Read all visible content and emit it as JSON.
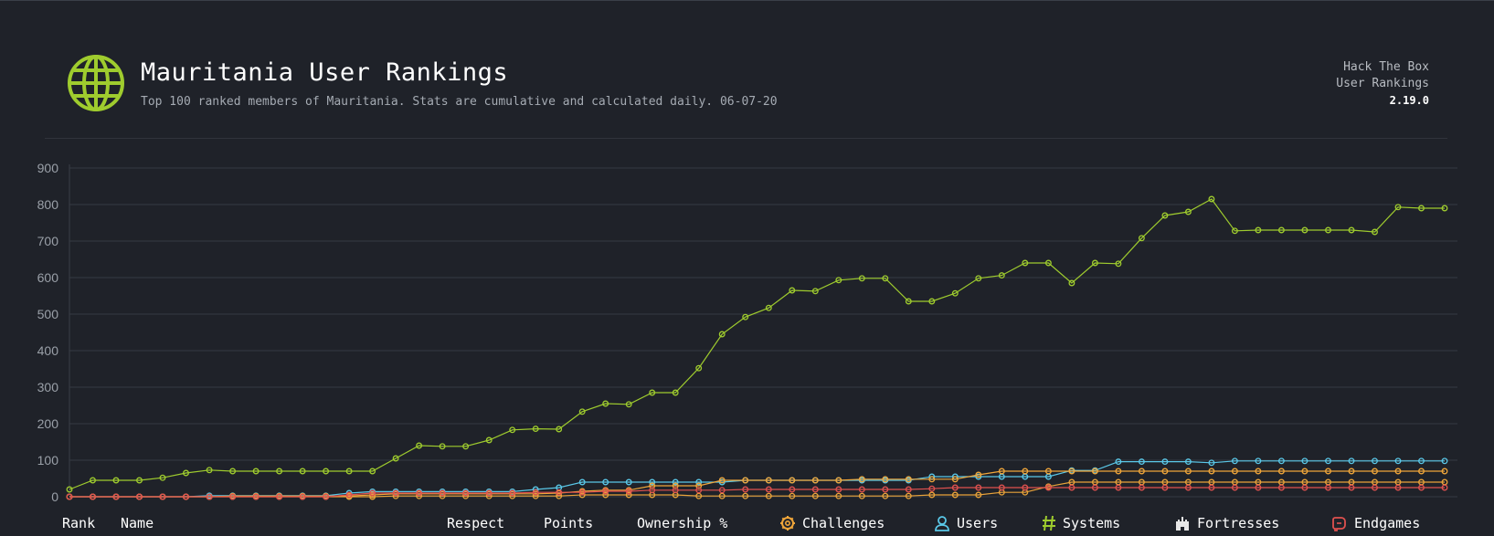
{
  "header": {
    "title": "Mauritania User Rankings",
    "subtitle": "Top 100 ranked members of Mauritania. Stats are cumulative and calculated daily. 06-07-20",
    "brand_line1": "Hack The Box",
    "brand_line2": "User Rankings",
    "version": "2.19.0",
    "globe_icon": "globe-icon",
    "accent": "#9fcc2e"
  },
  "columns": {
    "rank": "Rank",
    "name": "Name",
    "respect": "Respect",
    "points": "Points",
    "ownership": "Ownership %",
    "challenges": "Challenges",
    "users": "Users",
    "systems": "Systems",
    "fortresses": "Fortresses",
    "endgames": "Endgames"
  },
  "chart_data": {
    "type": "line",
    "ylim": [
      0,
      900
    ],
    "yticks": [
      "0",
      "100",
      "200",
      "300",
      "400",
      "500",
      "600",
      "700",
      "800",
      "900"
    ],
    "grid": true,
    "points_count": 60,
    "series": [
      {
        "color": "#9fcc2e",
        "values": [
          20,
          45,
          45,
          45,
          52,
          65,
          73,
          70,
          70,
          70,
          70,
          70,
          70,
          70,
          105,
          140,
          138,
          138,
          155,
          183,
          186,
          185,
          233,
          255,
          253,
          285,
          285,
          352,
          445,
          492,
          517,
          565,
          563,
          593,
          598,
          598,
          535,
          535,
          557,
          598,
          606,
          640,
          640,
          585,
          640,
          638,
          708,
          770,
          780,
          815,
          728,
          730,
          730,
          730,
          730,
          730,
          725,
          793,
          790,
          790
        ]
      },
      {
        "color": "#5ac8e8",
        "values": [
          0,
          0,
          0,
          0,
          0,
          0,
          3,
          3,
          3,
          3,
          3,
          3,
          10,
          14,
          14,
          14,
          14,
          14,
          14,
          14,
          20,
          25,
          40,
          40,
          40,
          40,
          40,
          40,
          40,
          45,
          45,
          45,
          45,
          45,
          45,
          45,
          45,
          55,
          55,
          55,
          55,
          55,
          55,
          72,
          72,
          96,
          96,
          96,
          96,
          93,
          98,
          98,
          98,
          98,
          98,
          98,
          98,
          98,
          98,
          98
        ]
      },
      {
        "color": "#f0a63a",
        "values": [
          0,
          0,
          0,
          0,
          0,
          0,
          0,
          2,
          2,
          2,
          2,
          2,
          2,
          5,
          8,
          8,
          8,
          8,
          8,
          8,
          8,
          10,
          15,
          18,
          18,
          30,
          30,
          30,
          45,
          45,
          45,
          45,
          45,
          45,
          48,
          48,
          48,
          48,
          48,
          60,
          70,
          70,
          70,
          70,
          70,
          70,
          70,
          70,
          70,
          70,
          70,
          70,
          70,
          70,
          70,
          70,
          70,
          70,
          70,
          70
        ]
      },
      {
        "color": "#e9a33a",
        "values": [
          0,
          0,
          0,
          0,
          0,
          0,
          0,
          0,
          0,
          0,
          0,
          0,
          0,
          0,
          2,
          2,
          2,
          2,
          2,
          2,
          2,
          2,
          5,
          5,
          5,
          5,
          5,
          2,
          2,
          2,
          2,
          2,
          2,
          2,
          2,
          2,
          2,
          5,
          5,
          5,
          12,
          12,
          28,
          40,
          40,
          40,
          40,
          40,
          40,
          40,
          40,
          40,
          40,
          40,
          40,
          40,
          40,
          40,
          40,
          40
        ]
      },
      {
        "color": "#e0514f",
        "values": [
          0,
          0,
          0,
          0,
          0,
          0,
          0,
          0,
          0,
          0,
          0,
          0,
          5,
          10,
          10,
          10,
          10,
          10,
          10,
          10,
          12,
          12,
          12,
          15,
          15,
          18,
          18,
          18,
          18,
          20,
          20,
          20,
          20,
          20,
          20,
          20,
          20,
          22,
          25,
          25,
          25,
          25,
          25,
          25,
          25,
          25,
          25,
          25,
          25,
          25,
          25,
          25,
          25,
          25,
          25,
          25,
          25,
          25,
          25,
          25
        ]
      }
    ]
  }
}
